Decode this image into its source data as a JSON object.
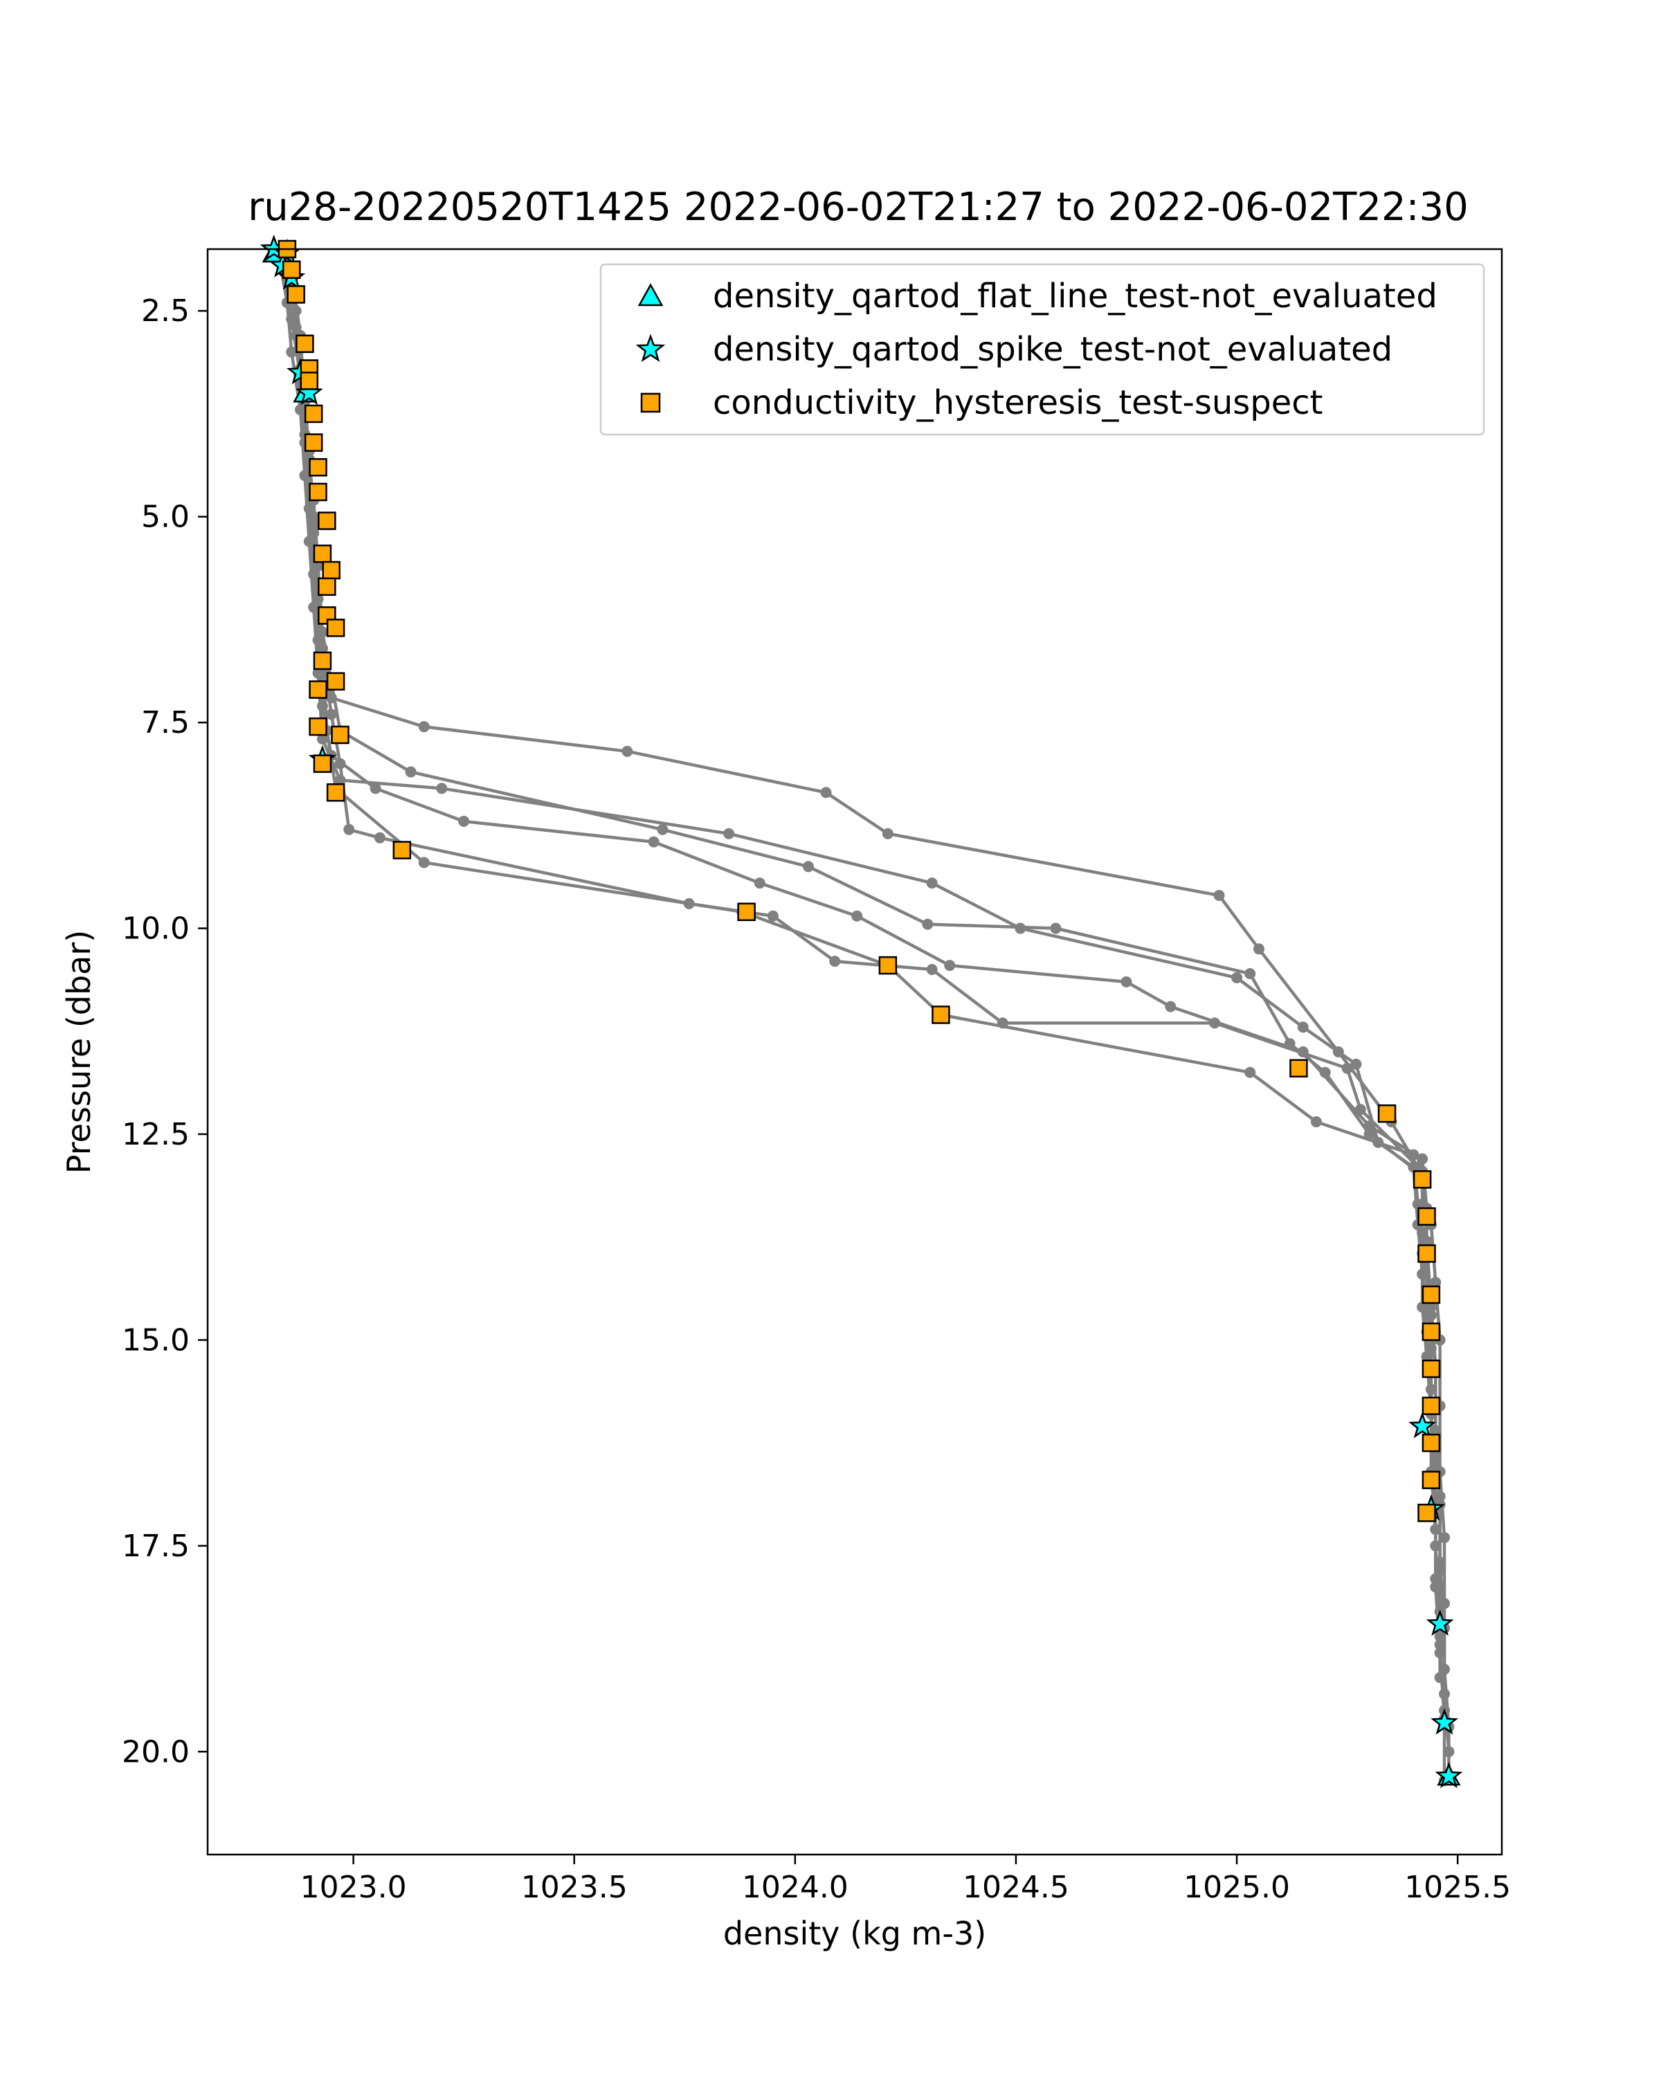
{
  "chart_data": {
    "type": "scatter",
    "title": "ru28-20220520T1425 2022-06-02T21:27 to 2022-06-02T22:30",
    "xlabel": "density (kg m-3)",
    "ylabel": "Pressure (dbar)",
    "xlim": [
      1022.67,
      1025.6
    ],
    "ylim": [
      21.25,
      1.75
    ],
    "y_inverted": true,
    "xticks": [
      {
        "value": 1023.0,
        "label": "1023.0"
      },
      {
        "value": 1023.5,
        "label": "1023.5"
      },
      {
        "value": 1024.0,
        "label": "1024.0"
      },
      {
        "value": 1024.5,
        "label": "1024.5"
      },
      {
        "value": 1025.0,
        "label": "1025.0"
      },
      {
        "value": 1025.5,
        "label": "1025.5"
      }
    ],
    "yticks": [
      {
        "value": 2.5,
        "label": "2.5"
      },
      {
        "value": 5.0,
        "label": "5.0"
      },
      {
        "value": 7.5,
        "label": "7.5"
      },
      {
        "value": 10.0,
        "label": "10.0"
      },
      {
        "value": 12.5,
        "label": "12.5"
      },
      {
        "value": 15.0,
        "label": "15.0"
      },
      {
        "value": 17.5,
        "label": "17.5"
      },
      {
        "value": 20.0,
        "label": "20.0"
      }
    ],
    "legend_position": "top-right",
    "line_color": "#808080",
    "profiles": [
      {
        "points": [
          [
            1022.84,
            1.8
          ],
          [
            1022.86,
            2.2
          ],
          [
            1022.87,
            2.8
          ],
          [
            1022.89,
            3.5
          ],
          [
            1022.9,
            4.3
          ],
          [
            1022.91,
            5.1
          ],
          [
            1022.92,
            5.9
          ],
          [
            1022.93,
            6.6
          ],
          [
            1022.95,
            7.2
          ],
          [
            1023.16,
            7.55
          ],
          [
            1023.62,
            7.85
          ],
          [
            1024.07,
            8.35
          ],
          [
            1024.21,
            8.85
          ],
          [
            1024.96,
            9.6
          ],
          [
            1025.05,
            10.25
          ],
          [
            1025.23,
            11.5
          ],
          [
            1025.35,
            12.35
          ],
          [
            1025.41,
            12.9
          ],
          [
            1025.44,
            13.6
          ],
          [
            1025.45,
            14.3
          ],
          [
            1025.46,
            15.0
          ],
          [
            1025.46,
            15.8
          ],
          [
            1025.46,
            16.6
          ],
          [
            1025.47,
            17.4
          ],
          [
            1025.47,
            18.2
          ],
          [
            1025.47,
            19.0
          ],
          [
            1025.48,
            19.7
          ],
          [
            1025.48,
            20.3
          ]
        ]
      },
      {
        "points": [
          [
            1022.85,
            1.9
          ],
          [
            1022.87,
            2.5
          ],
          [
            1022.88,
            3.2
          ],
          [
            1022.89,
            4.0
          ],
          [
            1022.91,
            4.8
          ],
          [
            1022.92,
            5.6
          ],
          [
            1022.93,
            6.4
          ],
          [
            1022.95,
            7.0
          ],
          [
            1022.97,
            7.6
          ],
          [
            1023.13,
            8.1
          ],
          [
            1023.7,
            8.8
          ],
          [
            1024.03,
            9.25
          ],
          [
            1024.3,
            9.95
          ],
          [
            1024.59,
            10.0
          ],
          [
            1025.03,
            10.55
          ],
          [
            1025.12,
            11.4
          ],
          [
            1025.2,
            11.75
          ],
          [
            1025.3,
            12.5
          ],
          [
            1025.42,
            13.0
          ],
          [
            1025.43,
            13.8
          ],
          [
            1025.44,
            14.6
          ],
          [
            1025.45,
            15.3
          ],
          [
            1025.45,
            16.1
          ],
          [
            1025.46,
            16.9
          ],
          [
            1025.46,
            17.7
          ],
          [
            1025.47,
            18.5
          ],
          [
            1025.47,
            19.3
          ],
          [
            1025.48,
            20.0
          ]
        ]
      },
      {
        "points": [
          [
            1022.83,
            1.8
          ],
          [
            1022.85,
            2.4
          ],
          [
            1022.86,
            3.0
          ],
          [
            1022.88,
            3.7
          ],
          [
            1022.89,
            4.5
          ],
          [
            1022.9,
            5.3
          ],
          [
            1022.91,
            6.1
          ],
          [
            1022.92,
            6.9
          ],
          [
            1022.93,
            7.7
          ],
          [
            1022.97,
            8.2
          ],
          [
            1023.2,
            8.3
          ],
          [
            1023.85,
            8.85
          ],
          [
            1024.31,
            9.45
          ],
          [
            1024.51,
            10.0
          ],
          [
            1025.0,
            10.6
          ],
          [
            1025.15,
            11.2
          ],
          [
            1025.27,
            11.65
          ],
          [
            1025.32,
            12.6
          ],
          [
            1025.4,
            12.9
          ],
          [
            1025.41,
            13.6
          ],
          [
            1025.42,
            14.2
          ],
          [
            1025.43,
            14.9
          ],
          [
            1025.44,
            15.6
          ],
          [
            1025.44,
            16.3
          ],
          [
            1025.45,
            17.1
          ],
          [
            1025.45,
            17.9
          ],
          [
            1025.46,
            18.7
          ],
          [
            1025.47,
            19.5
          ]
        ]
      },
      {
        "points": [
          [
            1022.84,
            1.85
          ],
          [
            1022.86,
            2.6
          ],
          [
            1022.88,
            3.3
          ],
          [
            1022.89,
            4.1
          ],
          [
            1022.9,
            4.9
          ],
          [
            1022.91,
            5.7
          ],
          [
            1022.92,
            6.5
          ],
          [
            1022.93,
            7.3
          ],
          [
            1022.95,
            7.9
          ],
          [
            1023.05,
            8.3
          ],
          [
            1023.25,
            8.7
          ],
          [
            1023.68,
            8.95
          ],
          [
            1023.92,
            9.45
          ],
          [
            1024.14,
            9.85
          ],
          [
            1024.35,
            10.45
          ],
          [
            1024.75,
            10.65
          ],
          [
            1024.85,
            10.95
          ],
          [
            1025.15,
            11.5
          ],
          [
            1025.3,
            12.4
          ],
          [
            1025.42,
            12.8
          ],
          [
            1025.43,
            13.4
          ],
          [
            1025.43,
            14.0
          ],
          [
            1025.44,
            14.7
          ],
          [
            1025.45,
            15.4
          ],
          [
            1025.45,
            16.2
          ],
          [
            1025.46,
            17.0
          ],
          [
            1025.46,
            17.8
          ],
          [
            1025.46,
            18.6
          ]
        ]
      },
      {
        "points": [
          [
            1022.85,
            1.9
          ],
          [
            1022.87,
            2.7
          ],
          [
            1022.88,
            3.4
          ],
          [
            1022.9,
            4.2
          ],
          [
            1022.91,
            5.0
          ],
          [
            1022.92,
            5.8
          ],
          [
            1022.93,
            6.6
          ],
          [
            1022.95,
            7.4
          ],
          [
            1022.97,
            8.0
          ],
          [
            1022.99,
            8.8
          ],
          [
            1023.06,
            8.9
          ],
          [
            1023.76,
            9.7
          ],
          [
            1023.95,
            9.85
          ],
          [
            1024.09,
            10.4
          ],
          [
            1024.31,
            10.5
          ],
          [
            1024.47,
            11.15
          ],
          [
            1024.95,
            11.15
          ],
          [
            1025.25,
            11.7
          ],
          [
            1025.28,
            12.2
          ],
          [
            1025.42,
            12.95
          ],
          [
            1025.42,
            13.7
          ],
          [
            1025.43,
            14.4
          ],
          [
            1025.44,
            15.1
          ],
          [
            1025.44,
            15.9
          ],
          [
            1025.45,
            16.7
          ],
          [
            1025.45,
            17.5
          ],
          [
            1025.46,
            18.3
          ],
          [
            1025.46,
            19.1
          ]
        ]
      },
      {
        "points": [
          [
            1022.86,
            2.0
          ],
          [
            1022.88,
            2.8
          ],
          [
            1022.89,
            3.6
          ],
          [
            1022.9,
            4.4
          ],
          [
            1022.91,
            5.2
          ],
          [
            1022.92,
            6.0
          ],
          [
            1022.93,
            6.8
          ],
          [
            1022.94,
            7.6
          ],
          [
            1022.96,
            8.3
          ],
          [
            1023.16,
            9.2
          ],
          [
            1023.88,
            9.8
          ],
          [
            1024.21,
            10.45
          ],
          [
            1024.33,
            11.05
          ],
          [
            1025.03,
            11.75
          ],
          [
            1025.18,
            12.35
          ],
          [
            1025.4,
            12.75
          ],
          [
            1025.41,
            13.35
          ],
          [
            1025.42,
            13.95
          ],
          [
            1025.42,
            14.6
          ],
          [
            1025.43,
            15.2
          ],
          [
            1025.44,
            15.9
          ],
          [
            1025.44,
            16.6
          ],
          [
            1025.45,
            17.3
          ],
          [
            1025.45,
            18.0
          ],
          [
            1025.46,
            18.8
          ],
          [
            1025.47,
            19.6
          ],
          [
            1025.47,
            20.35
          ]
        ]
      }
    ],
    "series": [
      {
        "name": "density_qartod_flat_line_test-not_evaluated",
        "marker": "triangle",
        "color": "#00ffff",
        "points": [
          [
            1022.82,
            1.8
          ],
          [
            1022.89,
            3.5
          ],
          [
            1025.48,
            20.3
          ]
        ]
      },
      {
        "name": "density_qartod_spike_test-not_evaluated",
        "marker": "star",
        "color": "#00ffff",
        "points": [
          [
            1022.82,
            1.75
          ],
          [
            1022.85,
            1.8
          ],
          [
            1022.84,
            1.95
          ],
          [
            1022.86,
            2.1
          ],
          [
            1022.88,
            3.25
          ],
          [
            1022.9,
            3.5
          ],
          [
            1022.93,
            7.95
          ],
          [
            1025.42,
            16.05
          ],
          [
            1025.44,
            17.05
          ],
          [
            1025.46,
            18.45
          ],
          [
            1025.47,
            19.65
          ],
          [
            1025.48,
            20.3
          ]
        ]
      },
      {
        "name": "conductivity_hysteresis_test-suspect",
        "marker": "square",
        "color": "#ffa500",
        "points": [
          [
            1022.85,
            1.75
          ],
          [
            1022.86,
            2.0
          ],
          [
            1022.87,
            2.3
          ],
          [
            1022.89,
            2.9
          ],
          [
            1022.9,
            3.2
          ],
          [
            1022.9,
            3.35
          ],
          [
            1022.91,
            3.75
          ],
          [
            1022.91,
            4.1
          ],
          [
            1022.92,
            4.4
          ],
          [
            1022.92,
            4.7
          ],
          [
            1022.94,
            5.05
          ],
          [
            1022.93,
            5.45
          ],
          [
            1022.95,
            5.65
          ],
          [
            1022.94,
            5.85
          ],
          [
            1022.94,
            6.2
          ],
          [
            1022.96,
            6.35
          ],
          [
            1022.93,
            6.75
          ],
          [
            1022.96,
            7.0
          ],
          [
            1022.92,
            7.1
          ],
          [
            1022.92,
            7.55
          ],
          [
            1022.97,
            7.65
          ],
          [
            1022.93,
            8.0
          ],
          [
            1022.96,
            8.35
          ],
          [
            1023.11,
            9.05
          ],
          [
            1023.89,
            9.8
          ],
          [
            1024.21,
            10.45
          ],
          [
            1024.33,
            11.05
          ],
          [
            1025.14,
            11.7
          ],
          [
            1025.34,
            12.25
          ],
          [
            1025.42,
            13.05
          ],
          [
            1025.43,
            13.5
          ],
          [
            1025.43,
            13.95
          ],
          [
            1025.44,
            14.45
          ],
          [
            1025.44,
            14.9
          ],
          [
            1025.44,
            15.35
          ],
          [
            1025.44,
            15.8
          ],
          [
            1025.44,
            16.25
          ],
          [
            1025.44,
            16.7
          ],
          [
            1025.43,
            17.1
          ]
        ]
      }
    ]
  }
}
